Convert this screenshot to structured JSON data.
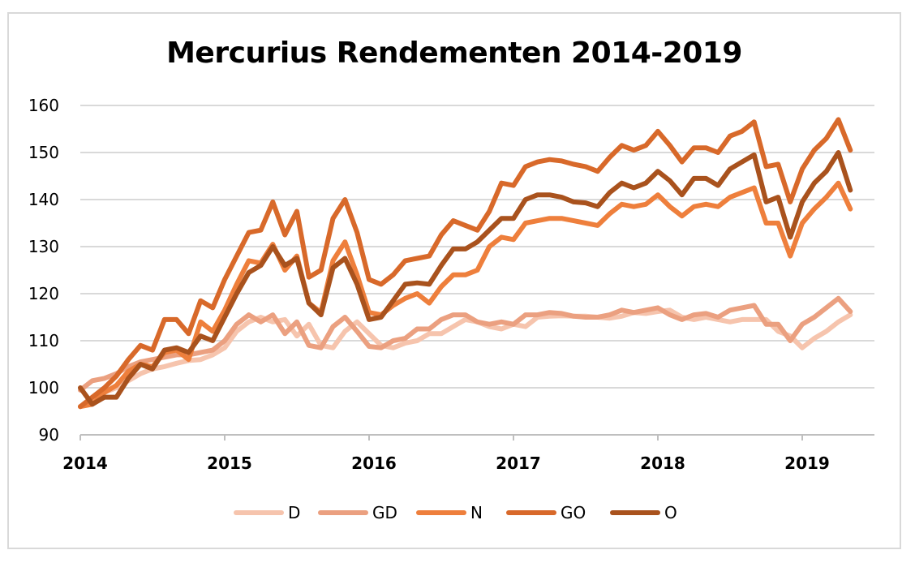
{
  "chart_data": {
    "type": "line",
    "title": "Mercurius Rendementen 2014-2019",
    "xlabel": "",
    "ylabel": "",
    "ylim": [
      90,
      160
    ],
    "yticks": [
      90,
      100,
      110,
      120,
      130,
      140,
      150,
      160
    ],
    "xlim": [
      2014,
      2019.5
    ],
    "xticks": [
      2014,
      2015,
      2016,
      2017,
      2018,
      2019
    ],
    "xtick_labels": [
      "2014",
      "2015",
      "2016",
      "2017",
      "2018",
      "2019"
    ],
    "grid": "horizontal",
    "legend_position": "bottom",
    "x": [
      2014.0,
      2014.0833,
      2014.1667,
      2014.25,
      2014.3333,
      2014.4167,
      2014.5,
      2014.5833,
      2014.6667,
      2014.75,
      2014.8333,
      2014.9167,
      2015.0,
      2015.0833,
      2015.1667,
      2015.25,
      2015.3333,
      2015.4167,
      2015.5,
      2015.5833,
      2015.6667,
      2015.75,
      2015.8333,
      2015.9167,
      2016.0,
      2016.0833,
      2016.1667,
      2016.25,
      2016.3333,
      2016.4167,
      2016.5,
      2016.5833,
      2016.6667,
      2016.75,
      2016.8333,
      2016.9167,
      2017.0,
      2017.0833,
      2017.1667,
      2017.25,
      2017.3333,
      2017.4167,
      2017.5,
      2017.5833,
      2017.6667,
      2017.75,
      2017.8333,
      2017.9167,
      2018.0,
      2018.0833,
      2018.1667,
      2018.25,
      2018.3333,
      2018.4167,
      2018.5,
      2018.5833,
      2018.6667,
      2018.75,
      2018.8333,
      2018.9167,
      2019.0,
      2019.0833,
      2019.1667,
      2019.25,
      2019.3333
    ],
    "series": [
      {
        "name": "D",
        "color": "#f6c4ad",
        "values": [
          96,
          97.5,
          99,
          100,
          101.5,
          103,
          104,
          104.5,
          105.2,
          105.8,
          106,
          107,
          108.5,
          112,
          114,
          115,
          114,
          114.5,
          111,
          113.5,
          109,
          108.5,
          112,
          114,
          111.5,
          109,
          108.5,
          109.5,
          110,
          111.5,
          111.5,
          113,
          114.5,
          114,
          113,
          112.5,
          113.5,
          113,
          115,
          115.2,
          115.3,
          115.2,
          115.2,
          115,
          114.8,
          115.2,
          116,
          115.8,
          116.2,
          116.5,
          115,
          114.5,
          115,
          114.5,
          114,
          114.5,
          114.5,
          114.5,
          112,
          111,
          108.5,
          110.5,
          112,
          114,
          115.5
        ]
      },
      {
        "name": "GD",
        "color": "#eba080",
        "values": [
          99.5,
          101.5,
          102,
          103,
          104.5,
          105.5,
          106,
          106.5,
          107,
          107,
          107.5,
          108,
          110,
          113.5,
          115.5,
          114,
          115.5,
          111.5,
          114,
          109,
          108.5,
          113,
          115,
          112,
          108.8,
          108.5,
          110,
          110.5,
          112.5,
          112.5,
          114.5,
          115.5,
          115.5,
          114,
          113.5,
          114,
          113.5,
          115.5,
          115.5,
          116,
          115.8,
          115.2,
          115,
          115,
          115.5,
          116.5,
          116,
          116.5,
          117,
          115.5,
          114.5,
          115.5,
          115.8,
          115,
          116.5,
          117,
          117.5,
          113.5,
          113.5,
          110,
          113.5,
          115,
          117,
          119,
          116.2
        ]
      },
      {
        "name": "N",
        "color": "#ee7f3c",
        "values": [
          96,
          96.5,
          99,
          100.5,
          103.5,
          105,
          104.5,
          107.5,
          108,
          106,
          114,
          112,
          116.5,
          122,
          127,
          126.5,
          130.5,
          125,
          128,
          118,
          116,
          127,
          131,
          124,
          116,
          115.5,
          117.5,
          119,
          120,
          118,
          121.5,
          124,
          124,
          125,
          130,
          132,
          131.5,
          135,
          135.5,
          136,
          136,
          135.5,
          135,
          134.5,
          137,
          139,
          138.5,
          139,
          141,
          138.5,
          136.5,
          138.5,
          139,
          138.5,
          140.5,
          141.5,
          142.5,
          135,
          135,
          128,
          135,
          138,
          140.5,
          143.5,
          138
        ]
      },
      {
        "name": "GO",
        "color": "#d8692a",
        "values": [
          96,
          98,
          100,
          102.5,
          106,
          109,
          108,
          114.5,
          114.5,
          111.5,
          118.5,
          117,
          123,
          128,
          133,
          133.5,
          139.5,
          132.5,
          137.5,
          123.5,
          125,
          136,
          140,
          133,
          123,
          122,
          124,
          127,
          127.5,
          128,
          132.5,
          135.5,
          134.5,
          133.5,
          137.5,
          143.5,
          143,
          147,
          148,
          148.5,
          148.2,
          147.5,
          147,
          146,
          149,
          151.5,
          150.5,
          151.5,
          154.5,
          151.5,
          148,
          151,
          151,
          150,
          153.5,
          154.5,
          156.5,
          147,
          147.5,
          139.5,
          146.5,
          150.5,
          153,
          157,
          150.5
        ]
      },
      {
        "name": "O",
        "color": "#a9521d",
        "values": [
          100,
          96.5,
          98,
          98,
          102,
          105,
          104,
          108,
          108.5,
          107.5,
          111,
          110,
          115,
          120,
          124.5,
          126,
          130,
          126,
          127.5,
          118,
          115.5,
          125.5,
          127.5,
          122,
          114.5,
          115,
          118.5,
          122,
          122.3,
          122,
          126,
          129.5,
          129.5,
          131,
          133.5,
          136,
          136,
          140,
          141,
          141,
          140.5,
          139.5,
          139.3,
          138.5,
          141.5,
          143.5,
          142.5,
          143.5,
          146,
          144,
          141,
          144.5,
          144.5,
          143,
          146.5,
          148,
          149.5,
          139.5,
          140.5,
          132,
          139.5,
          143.5,
          146,
          150,
          142
        ]
      }
    ]
  }
}
